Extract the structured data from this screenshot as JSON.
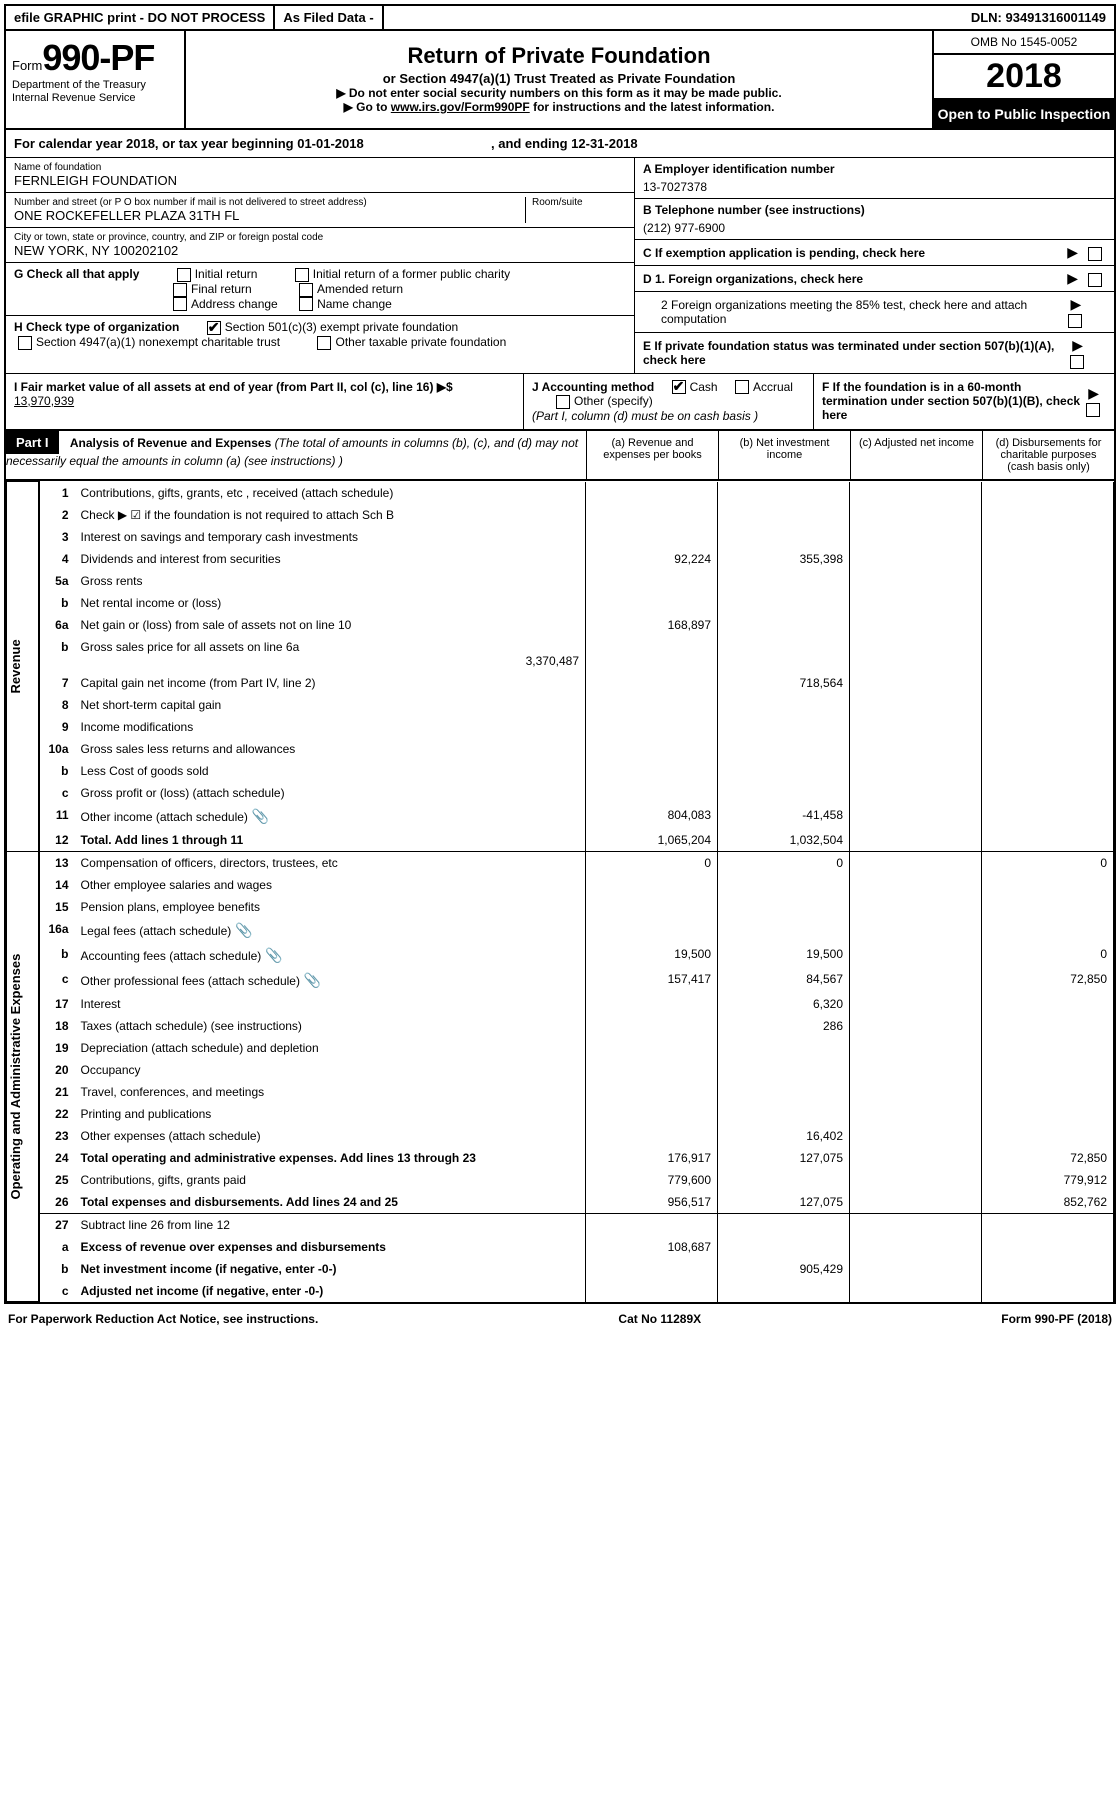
{
  "topbar": {
    "efile": "efile GRAPHIC print - DO NOT PROCESS",
    "asfiled": "As Filed Data -",
    "dln_label": "DLN:",
    "dln": "93491316001149"
  },
  "header": {
    "form_word": "Form",
    "form_no": "990-PF",
    "dept1": "Department of the Treasury",
    "dept2": "Internal Revenue Service",
    "title": "Return of Private Foundation",
    "subtitle": "or Section 4947(a)(1) Trust Treated as Private Foundation",
    "note1": "▶ Do not enter social security numbers on this form as it may be made public.",
    "note2_pre": "▶ Go to ",
    "note2_link": "www.irs.gov/Form990PF",
    "note2_post": " for instructions and the latest information.",
    "omb": "OMB No 1545-0052",
    "year": "2018",
    "open": "Open to Public Inspection"
  },
  "calyear": {
    "text": "For calendar year 2018, or tax year beginning 01-01-2018",
    "ending": ", and ending 12-31-2018"
  },
  "left": {
    "name_lbl": "Name of foundation",
    "name": "FERNLEIGH FOUNDATION",
    "addr_lbl": "Number and street (or P O  box number if mail is not delivered to street address)",
    "room_lbl": "Room/suite",
    "addr": "ONE ROCKEFELLER PLAZA 31TH FL",
    "city_lbl": "City or town, state or province, country, and ZIP or foreign postal code",
    "city": "NEW YORK, NY  100202102",
    "g_lbl": "G Check all that apply",
    "g_opts": [
      "Initial return",
      "Initial return of a former public charity",
      "Final return",
      "Amended return",
      "Address change",
      "Name change"
    ],
    "h_lbl": "H Check type of organization",
    "h_opt1": "Section 501(c)(3) exempt private foundation",
    "h_opt2": "Section 4947(a)(1) nonexempt charitable trust",
    "h_opt3": "Other taxable private foundation"
  },
  "right": {
    "a_lbl": "A Employer identification number",
    "a_val": "13-7027378",
    "b_lbl": "B Telephone number (see instructions)",
    "b_val": "(212) 977-6900",
    "c_lbl": "C If exemption application is pending, check here",
    "d1_lbl": "D 1. Foreign organizations, check here",
    "d2_lbl": "2 Foreign organizations meeting the 85% test, check here and attach computation",
    "e_lbl": "E If private foundation status was terminated under section 507(b)(1)(A), check here",
    "f_lbl": "F If the foundation is in a 60-month termination under section 507(b)(1)(B), check here"
  },
  "sec_ij": {
    "i_lbl": "I Fair market value of all assets at end of year (from Part II, col  (c), line 16) ▶$ ",
    "i_val": "13,970,939",
    "j_lbl": "J Accounting method",
    "j_cash": "Cash",
    "j_accrual": "Accrual",
    "j_other": "Other (specify)",
    "j_note": "(Part I, column (d) must be on cash basis )"
  },
  "part1": {
    "label": "Part I",
    "title": "Analysis of Revenue and Expenses",
    "desc": "(The total of amounts in columns (b), (c), and (d) may not necessarily equal the amounts in column (a) (see instructions) )",
    "col_a": "(a)   Revenue and expenses per books",
    "col_b": "(b)   Net investment income",
    "col_c": "(c)   Adjusted net income",
    "col_d": "(d)   Disbursements for charitable purposes (cash basis only)"
  },
  "side_labels": {
    "rev": "Revenue",
    "exp": "Operating and Administrative Expenses"
  },
  "rows": [
    {
      "n": "1",
      "d": "Contributions, gifts, grants, etc , received (attach schedule)"
    },
    {
      "n": "2",
      "d": "Check ▶ ☑ if the foundation is not required to attach Sch  B"
    },
    {
      "n": "3",
      "d": "Interest on savings and temporary cash investments"
    },
    {
      "n": "4",
      "d": "Dividends and interest from securities",
      "a": "92,224",
      "b": "355,398"
    },
    {
      "n": "5a",
      "d": "Gross rents"
    },
    {
      "n": "b",
      "d": "Net rental income or (loss)"
    },
    {
      "n": "6a",
      "d": "Net gain or (loss) from sale of assets not on line 10",
      "a": "168,897"
    },
    {
      "n": "b",
      "d": "Gross sales price for all assets on line 6a",
      "sub": "3,370,487"
    },
    {
      "n": "7",
      "d": "Capital gain net income (from Part IV, line 2)",
      "b": "718,564"
    },
    {
      "n": "8",
      "d": "Net short-term capital gain"
    },
    {
      "n": "9",
      "d": "Income modifications"
    },
    {
      "n": "10a",
      "d": "Gross sales less returns and allowances"
    },
    {
      "n": "b",
      "d": "Less  Cost of goods sold"
    },
    {
      "n": "c",
      "d": "Gross profit or (loss) (attach schedule)"
    },
    {
      "n": "11",
      "d": "Other income (attach schedule)",
      "icon": true,
      "a": "804,083",
      "b": "-41,458"
    },
    {
      "n": "12",
      "d": "Total. Add lines 1 through 11",
      "bold": true,
      "a": "1,065,204",
      "b": "1,032,504",
      "sep": true
    },
    {
      "n": "13",
      "d": "Compensation of officers, directors, trustees, etc",
      "a": "0",
      "b": "0",
      "dd": "0"
    },
    {
      "n": "14",
      "d": "Other employee salaries and wages"
    },
    {
      "n": "15",
      "d": "Pension plans, employee benefits"
    },
    {
      "n": "16a",
      "d": "Legal fees (attach schedule)",
      "icon": true
    },
    {
      "n": "b",
      "d": "Accounting fees (attach schedule)",
      "icon": true,
      "a": "19,500",
      "b": "19,500",
      "dd": "0"
    },
    {
      "n": "c",
      "d": "Other professional fees (attach schedule)",
      "icon": true,
      "a": "157,417",
      "b": "84,567",
      "dd": "72,850"
    },
    {
      "n": "17",
      "d": "Interest",
      "b": "6,320"
    },
    {
      "n": "18",
      "d": "Taxes (attach schedule) (see instructions)",
      "b": "286"
    },
    {
      "n": "19",
      "d": "Depreciation (attach schedule) and depletion"
    },
    {
      "n": "20",
      "d": "Occupancy"
    },
    {
      "n": "21",
      "d": "Travel, conferences, and meetings"
    },
    {
      "n": "22",
      "d": "Printing and publications"
    },
    {
      "n": "23",
      "d": "Other expenses (attach schedule)",
      "b": "16,402"
    },
    {
      "n": "24",
      "d": "Total operating and administrative expenses. Add lines 13 through 23",
      "bold": true,
      "a": "176,917",
      "b": "127,075",
      "dd": "72,850"
    },
    {
      "n": "25",
      "d": "Contributions, gifts, grants paid",
      "a": "779,600",
      "dd": "779,912"
    },
    {
      "n": "26",
      "d": "Total expenses and disbursements. Add lines 24 and 25",
      "bold": true,
      "a": "956,517",
      "b": "127,075",
      "dd": "852,762",
      "sep": true
    },
    {
      "n": "27",
      "d": "Subtract line 26 from line 12"
    },
    {
      "n": "a",
      "d": "Excess of revenue over expenses and disbursements",
      "bold": true,
      "a": "108,687"
    },
    {
      "n": "b",
      "d": "Net investment income (if negative, enter -0-)",
      "bold": true,
      "b": "905,429"
    },
    {
      "n": "c",
      "d": "Adjusted net income (if negative, enter -0-)",
      "bold": true
    }
  ],
  "footer": {
    "left": "For Paperwork Reduction Act Notice, see instructions.",
    "mid": "Cat No  11289X",
    "right": "Form 990-PF (2018)"
  }
}
